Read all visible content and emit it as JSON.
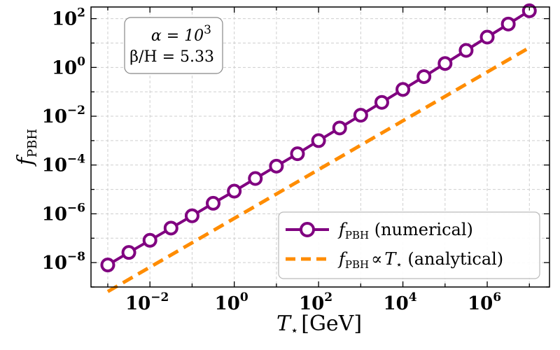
{
  "chart_data": {
    "type": "line",
    "xscale": "log",
    "yscale": "log",
    "xlim": [
      0.0004,
      30000000
    ],
    "ylim": [
      1e-09,
      300
    ],
    "grid": true,
    "legend_position": "lower-right",
    "xlabel": {
      "main": "T",
      "sub": "⋆",
      "unit": "[GeV]"
    },
    "ylabel": {
      "main": "f",
      "sub": "PBH"
    },
    "xticks": [
      {
        "value": 0.01,
        "base": "10",
        "exp": "−2"
      },
      {
        "value": 1,
        "base": "10",
        "exp": "0"
      },
      {
        "value": 100,
        "base": "10",
        "exp": "2"
      },
      {
        "value": 10000,
        "base": "10",
        "exp": "4"
      },
      {
        "value": 1000000,
        "base": "10",
        "exp": "6"
      }
    ],
    "yticks": [
      {
        "value": 1e-08,
        "base": "10",
        "exp": "−8"
      },
      {
        "value": 1e-06,
        "base": "10",
        "exp": "−6"
      },
      {
        "value": 0.0001,
        "base": "10",
        "exp": "−4"
      },
      {
        "value": 0.01,
        "base": "10",
        "exp": "−2"
      },
      {
        "value": 1,
        "base": "10",
        "exp": "0"
      },
      {
        "value": 100,
        "base": "10",
        "exp": "2"
      }
    ],
    "annotation": {
      "line1_lhs": "α = 10",
      "line1_exp": "3",
      "line2": "β/H = 5.33"
    },
    "series": [
      {
        "label_main": "f",
        "label_sub": "PBH",
        "label_rest": " (numerical)",
        "color": "#800080",
        "style": "solid-markers",
        "x": [
          0.001,
          0.00316,
          0.01,
          0.0316,
          0.1,
          0.316,
          1,
          3.16,
          10,
          31.6,
          100,
          316,
          1000,
          3160,
          10000,
          31600,
          100000,
          316000,
          1000000,
          3160000,
          10000000
        ],
        "y": [
          8e-09,
          2.6e-08,
          8.2e-08,
          2.6e-07,
          8.3e-07,
          2.7e-06,
          8.5e-06,
          2.8e-05,
          9e-05,
          0.00029,
          0.001,
          0.0033,
          0.011,
          0.037,
          0.125,
          0.42,
          1.45,
          5,
          17.5,
          60,
          210
        ]
      },
      {
        "label_main": "f",
        "label_sub": "PBH",
        "label_rest": " (analytical)",
        "label_mid": "∝",
        "label_T": "T",
        "label_Tsub": "⋆",
        "color": "#ff8c00",
        "style": "dashed",
        "x": [
          0.001,
          10000000
        ],
        "y": [
          6.5e-10,
          6.5
        ]
      }
    ]
  }
}
